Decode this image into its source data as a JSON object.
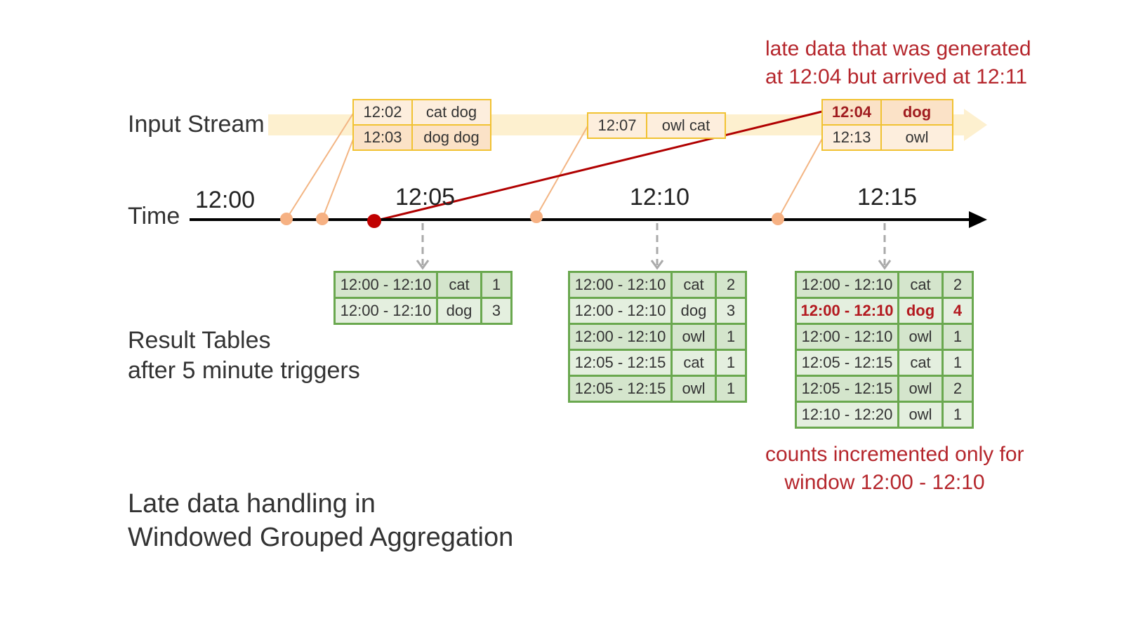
{
  "labels": {
    "input_stream": "Input Stream",
    "time": "Time",
    "result_tables_line1": "Result Tables",
    "result_tables_line2": "after 5 minute triggers",
    "caption_line1": "Late data handling in",
    "caption_line2": "Windowed Grouped Aggregation"
  },
  "ticks": [
    "12:00",
    "12:05",
    "12:10",
    "12:15"
  ],
  "annotations": {
    "late_line1": "late data that was generated",
    "late_line2": "at 12:04 but arrived at 12:11",
    "counts_line1": "counts incremented only for",
    "counts_line2": "window 12:00 - 12:10"
  },
  "events": [
    {
      "rows": [
        {
          "time": "12:02",
          "words": "cat dog"
        },
        {
          "time": "12:03",
          "words": "dog dog"
        }
      ]
    },
    {
      "rows": [
        {
          "time": "12:07",
          "words": "owl cat"
        }
      ]
    },
    {
      "rows": [
        {
          "time": "12:04",
          "words": "dog",
          "late": true
        },
        {
          "time": "12:13",
          "words": "owl"
        }
      ]
    }
  ],
  "results": [
    {
      "rows": [
        {
          "window": "12:00 - 12:10",
          "word": "cat",
          "count": "1"
        },
        {
          "window": "12:00 - 12:10",
          "word": "dog",
          "count": "3"
        }
      ]
    },
    {
      "rows": [
        {
          "window": "12:00 - 12:10",
          "word": "cat",
          "count": "2"
        },
        {
          "window": "12:00 - 12:10",
          "word": "dog",
          "count": "3"
        },
        {
          "window": "12:00 - 12:10",
          "word": "owl",
          "count": "1"
        },
        {
          "window": "12:05 - 12:15",
          "word": "cat",
          "count": "1"
        },
        {
          "window": "12:05 - 12:15",
          "word": "owl",
          "count": "1"
        }
      ]
    },
    {
      "rows": [
        {
          "window": "12:00 - 12:10",
          "word": "cat",
          "count": "2"
        },
        {
          "window": "12:00 - 12:10",
          "word": "dog",
          "count": "4",
          "highlight": true
        },
        {
          "window": "12:00 - 12:10",
          "word": "owl",
          "count": "1"
        },
        {
          "window": "12:05 - 12:15",
          "word": "cat",
          "count": "1"
        },
        {
          "window": "12:05 - 12:15",
          "word": "owl",
          "count": "2"
        },
        {
          "window": "12:10 - 12:20",
          "word": "owl",
          "count": "1"
        }
      ]
    }
  ],
  "colors": {
    "stream_band": "#fdf0cf",
    "event_border": "#f1c232",
    "dot": "#f6b183",
    "late_dot": "#c00000",
    "late_line": "#b00000",
    "result_border": "#6aa84f",
    "annotation_red": "#b5262c"
  }
}
